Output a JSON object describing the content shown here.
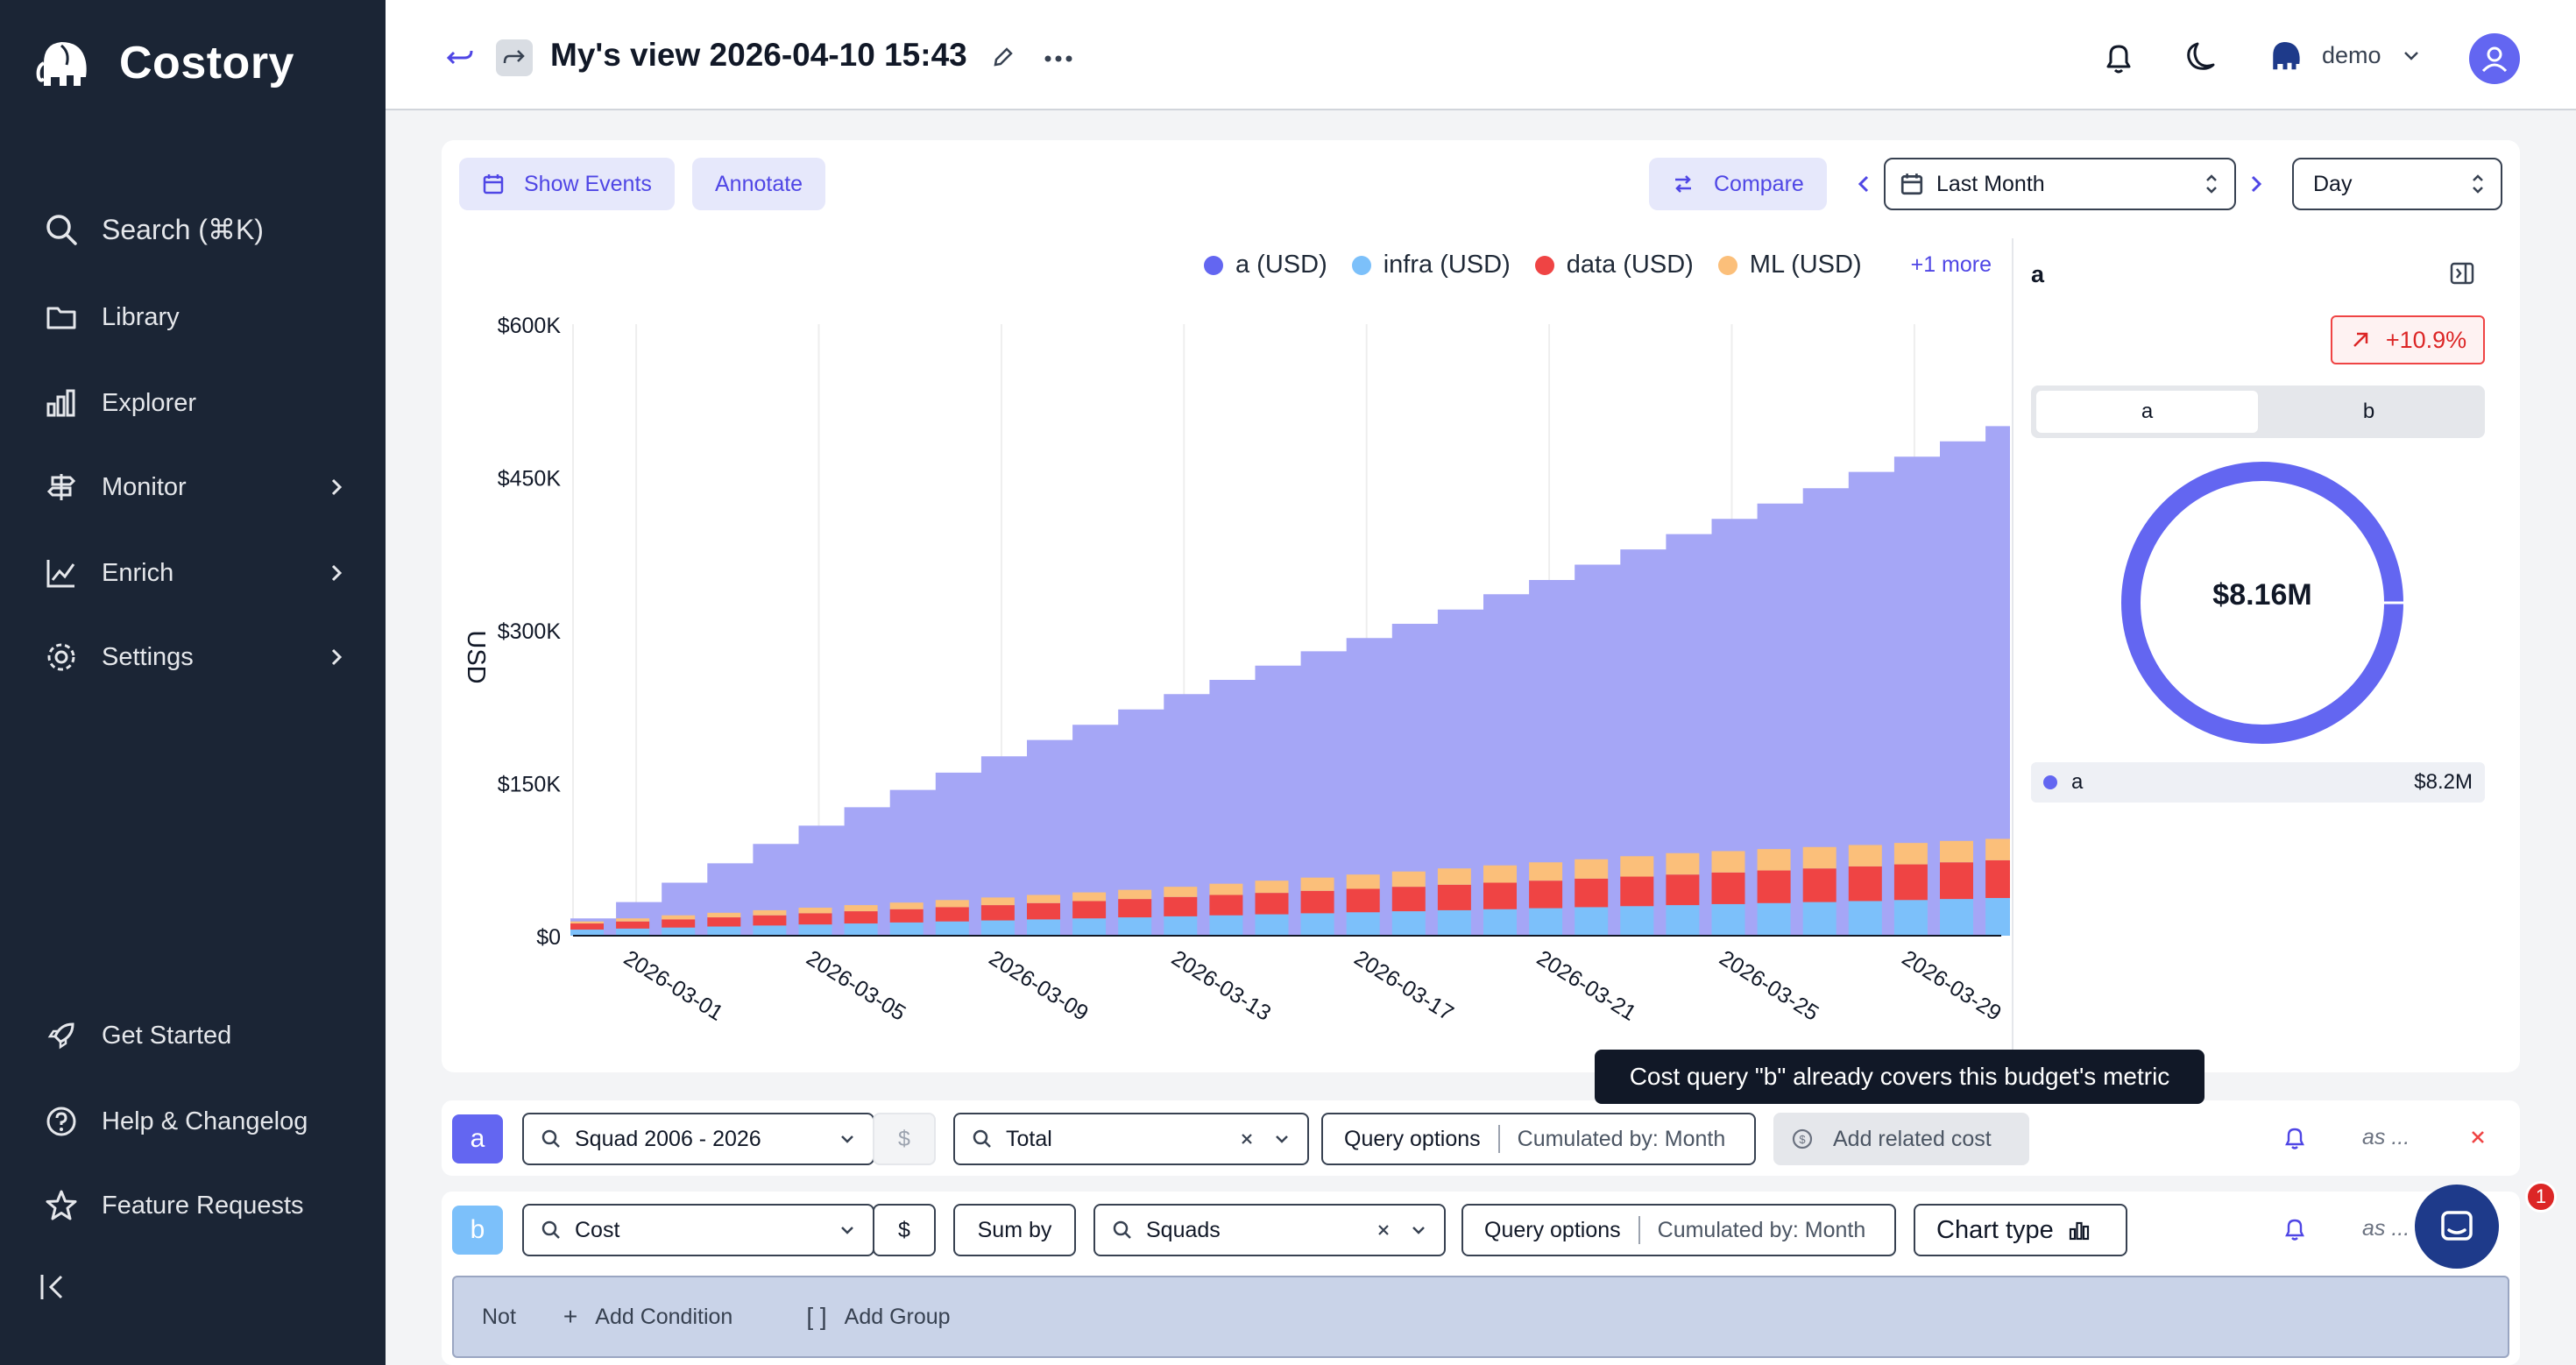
{
  "app": {
    "name": "Costory"
  },
  "sidebar": {
    "search_label": "Search (⌘K)",
    "items": [
      {
        "label": "Library",
        "icon": "folder-icon"
      },
      {
        "label": "Explorer",
        "icon": "bar-chart-icon"
      },
      {
        "label": "Monitor",
        "icon": "signpost-icon",
        "has_children": true
      },
      {
        "label": "Enrich",
        "icon": "trend-icon",
        "has_children": true
      },
      {
        "label": "Settings",
        "icon": "gear-icon",
        "has_children": true
      }
    ],
    "bottom_items": [
      {
        "label": "Get Started",
        "icon": "rocket-icon"
      },
      {
        "label": "Help & Changelog",
        "icon": "help-circle-icon"
      },
      {
        "label": "Feature Requests",
        "icon": "star-icon"
      }
    ]
  },
  "topbar": {
    "title": "My's view 2026-04-10 15:43",
    "org": "demo"
  },
  "toolbar": {
    "show_events": "Show Events",
    "annotate": "Annotate",
    "compare": "Compare",
    "period": "Last Month",
    "granularity": "Day"
  },
  "legend": {
    "items": [
      {
        "label": "a (USD)",
        "color": "#6366f1"
      },
      {
        "label": "infra (USD)",
        "color": "#7cc0fa"
      },
      {
        "label": "data (USD)",
        "color": "#ef4444"
      },
      {
        "label": "ML (USD)",
        "color": "#fbbf7a"
      }
    ],
    "more": "+1 more"
  },
  "chart_data": {
    "type": "area",
    "ylabel": "USD",
    "ylim": [
      0,
      600000
    ],
    "yticks": [
      "$0",
      "$150K",
      "$300K",
      "$450K",
      "$600K"
    ],
    "xticks": [
      "2026-03-01",
      "2026-03-05",
      "2026-03-09",
      "2026-03-13",
      "2026-03-17",
      "2026-03-21",
      "2026-03-25",
      "2026-03-29"
    ],
    "x": [
      "2026-02-28",
      "2026-03-01",
      "2026-03-02",
      "2026-03-03",
      "2026-03-04",
      "2026-03-05",
      "2026-03-06",
      "2026-03-07",
      "2026-03-08",
      "2026-03-09",
      "2026-03-10",
      "2026-03-11",
      "2026-03-12",
      "2026-03-13",
      "2026-03-14",
      "2026-03-15",
      "2026-03-16",
      "2026-03-17",
      "2026-03-18",
      "2026-03-19",
      "2026-03-20",
      "2026-03-21",
      "2026-03-22",
      "2026-03-23",
      "2026-03-24",
      "2026-03-25",
      "2026-03-26",
      "2026-03-27",
      "2026-03-28",
      "2026-03-29",
      "2026-03-30",
      "2026-03-31"
    ],
    "area_series": {
      "name": "a (USD)",
      "color": "#a5a6f6",
      "values": [
        17000,
        33000,
        52000,
        71000,
        90000,
        108000,
        126000,
        143000,
        160000,
        176000,
        192000,
        207000,
        222000,
        237000,
        251000,
        265000,
        279000,
        292000,
        306000,
        320000,
        335000,
        349000,
        364000,
        379000,
        394000,
        409000,
        424000,
        439000,
        455000,
        470000,
        485000,
        500000
      ]
    },
    "stacked_bars": [
      {
        "name": "infra (USD)",
        "color": "#7cc0fa",
        "values": [
          6000,
          7000,
          8000,
          9000,
          10000,
          11000,
          12000,
          13000,
          14000,
          15000,
          16000,
          17000,
          18000,
          19000,
          20000,
          21000,
          22000,
          23000,
          24000,
          25000,
          26000,
          27000,
          28000,
          29000,
          30000,
          31000,
          32000,
          33000,
          34000,
          35000,
          36000,
          37000
        ]
      },
      {
        "name": "data (USD)",
        "color": "#ef4444",
        "values": [
          6000,
          7000,
          8000,
          9000,
          10000,
          11000,
          12000,
          13000,
          14000,
          15000,
          16000,
          17000,
          18000,
          19000,
          20000,
          21000,
          22000,
          23000,
          24000,
          25000,
          26000,
          27000,
          28000,
          29000,
          30000,
          31000,
          32000,
          33000,
          34000,
          35000,
          36000,
          37000
        ]
      },
      {
        "name": "ML (USD)",
        "color": "#fbbf7a",
        "values": [
          2000,
          3000,
          4000,
          4500,
          5000,
          5500,
          6000,
          6500,
          7000,
          7500,
          8000,
          8500,
          9000,
          10000,
          11000,
          12000,
          13000,
          14000,
          15000,
          16000,
          17000,
          18000,
          19000,
          20000,
          21000,
          21000,
          21000,
          21000,
          21000,
          21000,
          21000,
          21000
        ]
      }
    ]
  },
  "right_panel": {
    "title": "a",
    "change": "+10.9%",
    "tabs": [
      "a",
      "b"
    ],
    "active_tab": "a",
    "total": "$8.16M",
    "rows": [
      {
        "label": "a",
        "value": "$8.2M",
        "color": "#6366f1"
      }
    ]
  },
  "tooltip": "Cost query \"b\" already covers this budget's metric",
  "queries": {
    "a": {
      "label": "a",
      "color": "#6366f1",
      "metric": "Squad 2006 - 2026",
      "unit": "$",
      "group": "Total",
      "options": "Query options",
      "cumulated": "Cumulated by: Month",
      "related": "Add related cost",
      "as": "as ..."
    },
    "b": {
      "label": "b",
      "color": "#7cc0fa",
      "metric": "Cost",
      "unit": "$",
      "sum_by": "Sum by",
      "group": "Squads",
      "options": "Query options",
      "cumulated": "Cumulated by: Month",
      "chart_type": "Chart type",
      "as": "as ..."
    }
  },
  "conditions": {
    "not": "Not",
    "add_condition": "Add Condition",
    "add_group": "Add Group"
  },
  "chat": {
    "badge": "1"
  }
}
